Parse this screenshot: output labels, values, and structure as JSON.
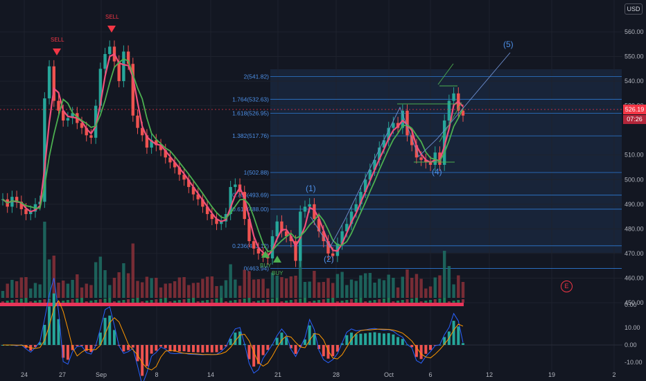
{
  "currency": "USD",
  "last_price": "526.19",
  "countdown": "07:26",
  "earnings_marker": "E",
  "chart_data": {
    "type": "candlestick",
    "price_axis": {
      "ticks": [
        560,
        550,
        540,
        530,
        510,
        500,
        490,
        480,
        470,
        460,
        450
      ],
      "labels": [
        "560.00",
        "550.00",
        "540.00",
        "530.00",
        "510.00",
        "500.00",
        "490.00",
        "480.00",
        "470.00",
        "460.00",
        "450.00"
      ]
    },
    "time_axis": {
      "labels": [
        "24",
        "27",
        "Sep",
        "8",
        "14",
        "21",
        "28",
        "Oct",
        "6",
        "12",
        "19",
        "2"
      ]
    },
    "fib_levels": [
      {
        "ratio": "2",
        "value": 541.82,
        "label": "2(541.82)"
      },
      {
        "ratio": "1.764",
        "value": 532.63,
        "label": "1.764(532.63)"
      },
      {
        "ratio": "1.618",
        "value": 526.95,
        "label": "1.618(526.95)"
      },
      {
        "ratio": "1.382",
        "value": 517.76,
        "label": "1.382(517.76)"
      },
      {
        "ratio": "1",
        "value": 502.88,
        "label": "1(502.88)"
      },
      {
        "ratio": "0.764",
        "value": 493.69,
        "label": "0.764(493.69)"
      },
      {
        "ratio": "0.618",
        "value": 488.0,
        "label": "0.618(488.00)"
      },
      {
        "ratio": "0.236",
        "value": 473.12,
        "label": "0.236(473.12)"
      },
      {
        "ratio": "0",
        "value": 463.94,
        "label": "0(463.94)"
      }
    ],
    "wave_labels": [
      "(1)",
      "(2)",
      "(4)",
      "(5)"
    ],
    "signals": [
      {
        "text": "SELL",
        "dir": "down"
      },
      {
        "text": "SELL",
        "dir": "down"
      },
      {
        "text": "BUY",
        "dir": "up"
      },
      {
        "text": "BUY",
        "dir": "up"
      }
    ],
    "close": [
      492,
      489,
      493,
      491,
      488,
      486,
      487,
      490,
      491,
      533,
      546,
      532,
      528,
      524,
      525,
      527,
      523,
      521,
      518,
      517,
      530,
      545,
      551,
      554,
      548,
      540,
      552,
      547,
      526,
      521,
      518,
      513,
      516,
      514,
      512,
      509,
      507,
      505,
      502,
      500,
      497,
      494,
      492,
      489,
      486,
      484,
      482,
      483,
      486,
      497,
      498,
      495,
      484,
      475,
      472,
      470,
      469,
      468,
      477,
      483,
      479,
      477,
      475,
      467,
      487,
      489,
      490,
      484,
      479,
      475,
      470,
      469,
      474,
      479,
      482,
      487,
      490,
      495,
      500,
      504,
      508,
      513,
      516,
      521,
      523,
      521,
      528,
      518,
      514,
      509,
      508,
      507,
      506,
      511,
      506,
      524,
      532,
      535,
      528,
      526
    ],
    "macd_axis": {
      "ticks": [
        10,
        0,
        -10
      ],
      "labels": [
        "10.00",
        "0.00",
        "-10.00"
      ]
    },
    "volume_osc_label": "0.00"
  }
}
